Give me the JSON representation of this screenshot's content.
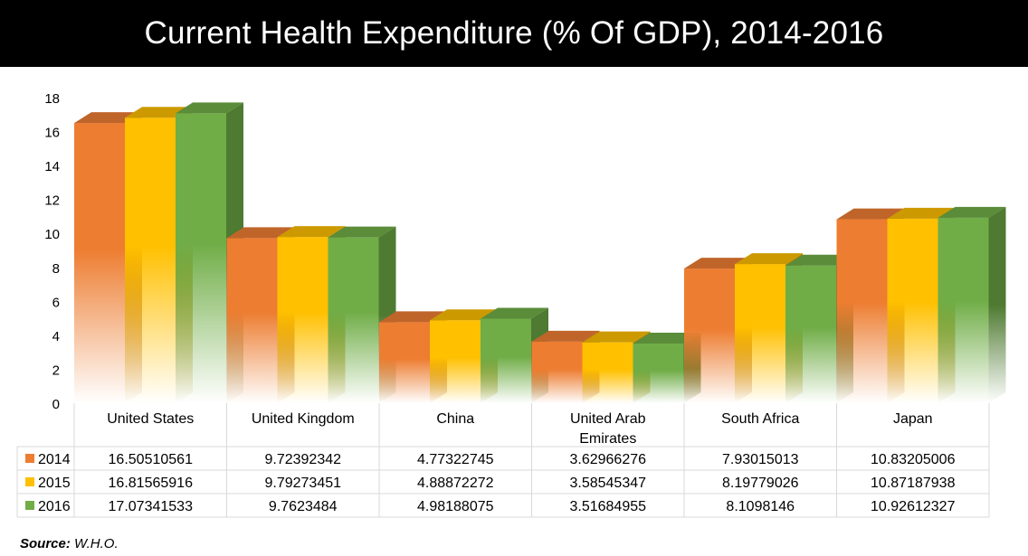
{
  "chart_data": {
    "type": "bar",
    "title": "Current Health Expenditure (% Of GDP), 2014-2016",
    "categories": [
      "United States",
      "United Kingdom",
      "China",
      "United Arab Emirates",
      "South Africa",
      "Japan"
    ],
    "series": [
      {
        "name": "2014",
        "color": "#ED7D31",
        "side_color": "#A8541E",
        "top_color": "#C0652A",
        "value_labels": [
          "16.50510561",
          "9.72392342",
          "4.77322745",
          "3.62966276",
          "7.93015013",
          "10.83205006"
        ],
        "values": [
          16.50510561,
          9.72392342,
          4.77322745,
          3.62966276,
          7.93015013,
          10.83205006
        ]
      },
      {
        "name": "2015",
        "color": "#FFC000",
        "side_color": "#B38600",
        "top_color": "#CC9A00",
        "value_labels": [
          "16.81565916",
          "9.79273451",
          "4.88872272",
          "3.58545347",
          "8.19779026",
          "10.87187938"
        ],
        "values": [
          16.81565916,
          9.79273451,
          4.88872272,
          3.58545347,
          8.19779026,
          10.87187938
        ]
      },
      {
        "name": "2016",
        "color": "#70AD47",
        "side_color": "#4E7A31",
        "top_color": "#5A8C39",
        "value_labels": [
          "17.07341533",
          "9.7623484",
          "4.98188075",
          "3.51684955",
          "8.1098146",
          "10.92612327"
        ],
        "values": [
          17.07341533,
          9.7623484,
          4.98188075,
          3.51684955,
          8.1098146,
          10.92612327
        ]
      }
    ],
    "ylim": [
      0,
      18
    ],
    "yticks": [
      "0",
      "2",
      "4",
      "6",
      "8",
      "10",
      "12",
      "14",
      "16",
      "18"
    ],
    "grid": false,
    "legend": "data-table",
    "xlabel": "",
    "ylabel": ""
  },
  "source": {
    "label": "Source:",
    "text": " W.H.O."
  }
}
